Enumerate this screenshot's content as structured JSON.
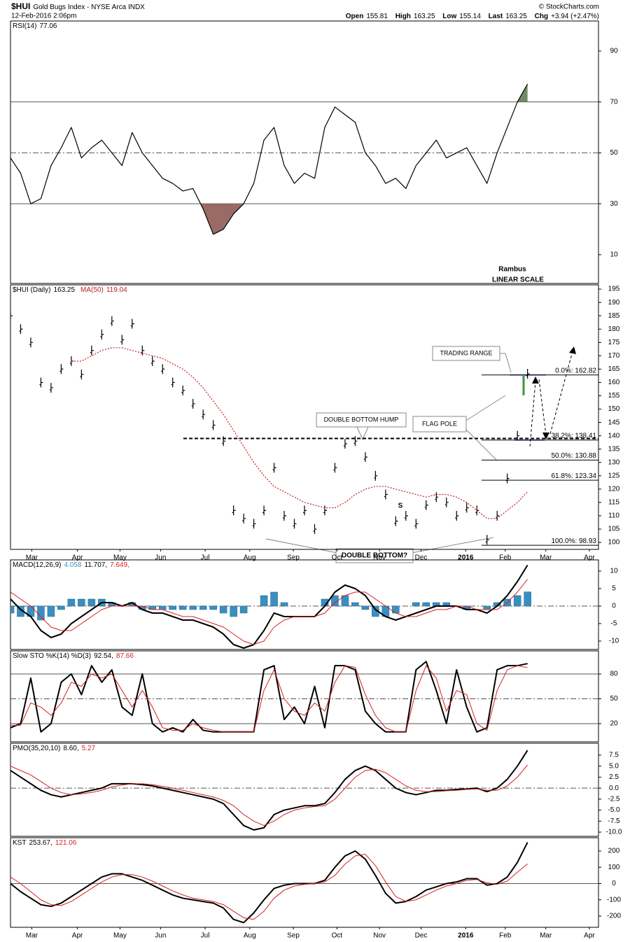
{
  "header": {
    "symbol": "$HUI",
    "name": "Gold Bugs Index - NYSE Arca INDX",
    "date": "12-Feb-2016 2:06pm",
    "credit": "© StockCharts.com",
    "quote": [
      {
        "label": "Open",
        "value": "155.81"
      },
      {
        "label": "High",
        "value": "163.25"
      },
      {
        "label": "Low",
        "value": "155.14"
      },
      {
        "label": "Last",
        "value": "163.25"
      },
      {
        "label": "Chg",
        "value": "+3.94 (+2.47%)"
      }
    ]
  },
  "notes": [
    "Rambus",
    "LINEAR SCALE"
  ],
  "x_axis": {
    "xlim": [
      0,
      58
    ],
    "xticks": [
      {
        "value": 2.1,
        "label": "Mar"
      },
      {
        "value": 6.6,
        "label": "Apr"
      },
      {
        "value": 10.8,
        "label": "May"
      },
      {
        "value": 14.8,
        "label": "Jun"
      },
      {
        "value": 19.2,
        "label": "Jul"
      },
      {
        "value": 23.6,
        "label": "Aug"
      },
      {
        "value": 27.9,
        "label": "Sep"
      },
      {
        "value": 32.2,
        "label": "Oct"
      },
      {
        "value": 36.4,
        "label": "Nov"
      },
      {
        "value": 40.5,
        "label": "Dec"
      },
      {
        "value": 44.9,
        "label": "2016"
      },
      {
        "value": 48.8,
        "label": "Feb"
      },
      {
        "value": 52.8,
        "label": "Mar"
      },
      {
        "value": 57.1,
        "label": "Apr"
      }
    ]
  },
  "chart_data": [
    {
      "type": "line",
      "ylim": [
        -1.3,
        101.8
      ],
      "yticks": [
        10,
        30,
        50,
        70,
        90
      ],
      "ref_lines": [
        {
          "value": 70,
          "style": "solid"
        },
        {
          "value": 50,
          "style": "dashdot"
        },
        {
          "value": 30,
          "style": "solid"
        }
      ],
      "fill_above": {
        "level": 70,
        "color": "#6e8c63"
      },
      "fill_below": {
        "level": 30,
        "color": "#9a6a65"
      },
      "series": [
        {
          "name": "RSI(14)",
          "color": "#000000",
          "value_label": "77.06",
          "values": [
            48,
            42,
            30,
            32,
            45,
            52,
            60,
            48,
            52,
            55,
            50,
            45,
            58,
            50,
            45,
            40,
            38,
            35,
            36,
            28,
            18,
            20,
            26,
            30,
            38,
            55,
            60,
            45,
            38,
            42,
            40,
            60,
            68,
            65,
            62,
            50,
            45,
            38,
            40,
            36,
            45,
            50,
            55,
            48,
            50,
            52,
            45,
            38,
            50,
            60,
            70,
            77.06
          ]
        }
      ]
    },
    {
      "type": "line",
      "ylim": [
        97.4,
        196.6
      ],
      "yticks": [
        100,
        105,
        110,
        115,
        120,
        125,
        130,
        135,
        140,
        145,
        150,
        155,
        160,
        165,
        170,
        175,
        180,
        185,
        190,
        195
      ],
      "ref_lines": [
        {
          "value": 139,
          "style": "neckline"
        }
      ],
      "fib_levels": [
        {
          "value": 162.82,
          "label": "0.0%: 162.82"
        },
        {
          "value": 138.41,
          "label": "38.2%: 138.41"
        },
        {
          "value": 130.88,
          "label": "50.0%: 130.88"
        },
        {
          "value": 123.34,
          "label": "61.8%: 123.34"
        },
        {
          "value": 98.93,
          "label": "100.0%: 98.93"
        }
      ],
      "annotations": [
        "TRADING RANGE",
        "DOUBLE BOTTOM HUMP",
        "FLAG POLE",
        "DOUBLE BOTTOM?",
        "S"
      ],
      "series": [
        {
          "name": "$HUI (Daily)",
          "color": "#000000",
          "style": "bars",
          "value_label": "163.25",
          "values": [
            185,
            180,
            175,
            160,
            158,
            165,
            168,
            163,
            172,
            178,
            183,
            176,
            182,
            172,
            168,
            165,
            160,
            157,
            152,
            148,
            144,
            138,
            112,
            109,
            107,
            112,
            128,
            110,
            107,
            112,
            105,
            112,
            128,
            137,
            138,
            132,
            125,
            118,
            108,
            110,
            107,
            114,
            117,
            115,
            110,
            113,
            112,
            101,
            110,
            124,
            140,
            163.25
          ]
        },
        {
          "name": "MA(50)",
          "color": "#c02020",
          "dash": "2,2",
          "value_label": "119.04",
          "values": [
            null,
            null,
            null,
            null,
            null,
            null,
            168,
            168,
            170,
            172,
            173,
            173,
            172,
            171,
            170,
            169,
            167,
            165,
            162,
            158,
            153,
            148,
            142,
            136,
            130,
            125,
            121,
            119,
            117,
            115,
            114,
            113,
            113,
            115,
            118,
            120,
            121,
            121,
            120,
            119,
            118,
            117,
            118,
            118,
            117,
            115,
            112,
            109,
            109,
            112,
            115,
            119.04
          ]
        }
      ]
    },
    {
      "type": "line",
      "ylim": [
        -12.4,
        13.2
      ],
      "yticks": [
        10,
        5,
        0,
        -5,
        -10
      ],
      "ref_lines": [
        {
          "value": 0,
          "style": "dashdot"
        }
      ],
      "series": [
        {
          "name": "MACD(12,26,9)",
          "color": "#3a8fc0",
          "type": "bar",
          "value_label": "4.058",
          "values": [
            -2,
            -3,
            -3,
            -4,
            -3,
            -1,
            2,
            2,
            2,
            2,
            1,
            0,
            1,
            -1,
            -1,
            -1,
            -1,
            -1,
            -1,
            -1,
            -1,
            -2,
            -3,
            -2,
            0,
            3,
            4,
            1,
            0,
            0,
            0,
            2,
            3,
            3,
            1,
            -1,
            -3,
            -3,
            -2,
            0,
            1,
            1,
            1,
            1,
            0,
            -1,
            0,
            -1,
            1,
            2,
            3,
            4.058
          ]
        },
        {
          "color": "#000000",
          "width": 2,
          "value_label": "11.707,",
          "values": [
            2,
            -1,
            -3,
            -7,
            -9,
            -8,
            -5,
            -3,
            -1,
            1,
            1,
            0,
            1,
            -1,
            -2,
            -2,
            -3,
            -4,
            -4,
            -5,
            -6,
            -8,
            -11,
            -12,
            -11,
            -7,
            -2,
            -3,
            -3,
            -3,
            -3,
            0,
            4,
            6,
            5,
            3,
            -1,
            -3,
            -4,
            -3,
            -2,
            -1,
            0,
            0,
            0,
            -1,
            -1,
            -2,
            0,
            3,
            7,
            11.707
          ]
        },
        {
          "color": "#d62020",
          "width": 1,
          "value_label": "7.649,",
          "values": [
            4,
            2,
            0,
            -3,
            -6,
            -7,
            -7,
            -5,
            -3,
            -1,
            0,
            0,
            0,
            0,
            -1,
            -1,
            -2,
            -3,
            -3,
            -4,
            -5,
            -6,
            -8,
            -10,
            -11,
            -10,
            -6,
            -4,
            -3,
            -3,
            -3,
            -2,
            1,
            3,
            4,
            4,
            2,
            0,
            -2,
            -3,
            -3,
            -2,
            -1,
            -1,
            0,
            0,
            -1,
            -1,
            -1,
            1,
            4,
            7.649
          ]
        }
      ]
    },
    {
      "type": "line",
      "ylim": [
        -2,
        107.9
      ],
      "yticks": [
        80,
        50,
        20
      ],
      "ref_lines": [
        {
          "value": 80,
          "style": "solid"
        },
        {
          "value": 50,
          "style": "dashdot"
        },
        {
          "value": 20,
          "style": "solid"
        }
      ],
      "series": [
        {
          "name": "Slow STO %K(14) %D(3)",
          "color": "#000000",
          "width": 2,
          "value_label": "92.54,",
          "values": [
            15,
            20,
            75,
            10,
            20,
            70,
            80,
            55,
            90,
            70,
            85,
            40,
            30,
            80,
            20,
            10,
            15,
            10,
            25,
            12,
            10,
            10,
            10,
            10,
            10,
            85,
            90,
            25,
            40,
            20,
            65,
            15,
            90,
            90,
            85,
            35,
            20,
            10,
            10,
            10,
            85,
            95,
            60,
            20,
            85,
            40,
            10,
            15,
            85,
            90,
            90,
            92.54
          ]
        },
        {
          "color": "#d62020",
          "width": 1,
          "value_label": "87.66",
          "values": [
            18,
            18,
            45,
            40,
            30,
            45,
            70,
            65,
            80,
            75,
            80,
            60,
            40,
            60,
            40,
            15,
            12,
            12,
            20,
            15,
            12,
            10,
            10,
            10,
            10,
            60,
            85,
            50,
            35,
            30,
            45,
            35,
            70,
            90,
            88,
            55,
            30,
            15,
            10,
            10,
            60,
            90,
            75,
            35,
            60,
            55,
            20,
            12,
            60,
            85,
            90,
            87.66
          ]
        }
      ]
    },
    {
      "type": "line",
      "ylim": [
        -10.95,
        10.2
      ],
      "yticks": [
        7.5,
        {
          "value": 5,
          "label": "5.0"
        },
        2.5,
        {
          "value": 0,
          "label": "0.0"
        },
        -2.5,
        {
          "value": -5,
          "label": "-5.0"
        },
        -7.5,
        {
          "value": -10,
          "label": "-10.0"
        }
      ],
      "ref_lines": [
        {
          "value": 0,
          "style": "dashdot"
        }
      ],
      "series": [
        {
          "name": "PMO(35,20,10)",
          "color": "#000000",
          "width": 2,
          "value_label": "8.60,",
          "values": [
            4,
            2.5,
            1,
            -0.5,
            -1.5,
            -2,
            -1.5,
            -1,
            -0.5,
            0,
            1,
            1,
            1,
            0.8,
            0.5,
            0,
            -0.5,
            -1,
            -1.5,
            -2,
            -2.5,
            -3.5,
            -6,
            -8.5,
            -9.5,
            -9,
            -6,
            -5,
            -4.5,
            -4,
            -4,
            -3.5,
            -1,
            2,
            4,
            5,
            4,
            2,
            0,
            -1,
            -1.5,
            -1,
            -0.5,
            -0.5,
            -0.3,
            -0.2,
            0,
            -0.8,
            0,
            2,
            5,
            8.6
          ]
        },
        {
          "color": "#d62020",
          "width": 1,
          "value_label": "5.27",
          "values": [
            5,
            4,
            3,
            1.5,
            0,
            -1,
            -1.5,
            -1.3,
            -1,
            -0.5,
            0.3,
            0.7,
            1,
            1,
            0.8,
            0.4,
            0,
            -0.5,
            -1,
            -1.5,
            -2,
            -2.8,
            -4,
            -6,
            -7.5,
            -8.5,
            -7.5,
            -6,
            -5,
            -4.5,
            -4.2,
            -4,
            -2.5,
            0,
            2.5,
            4,
            4.3,
            3.5,
            2,
            0.5,
            -0.5,
            -0.8,
            -0.8,
            -0.6,
            -0.5,
            -0.3,
            -0.2,
            -0.5,
            -0.5,
            0.5,
            2.5,
            5.27
          ]
        }
      ]
    },
    {
      "type": "line",
      "ylim": [
        -268.8,
        281.7
      ],
      "yticks": [
        200,
        100,
        0,
        -100,
        -200
      ],
      "ref_lines": [
        {
          "value": 0,
          "style": "solid"
        }
      ],
      "series": [
        {
          "name": "KST",
          "color": "#000000",
          "width": 2,
          "value_label": "253.67,",
          "values": [
            0,
            -50,
            -90,
            -130,
            -140,
            -120,
            -80,
            -40,
            0,
            40,
            60,
            60,
            40,
            20,
            -10,
            -40,
            -70,
            -90,
            -100,
            -110,
            -120,
            -150,
            -220,
            -240,
            -180,
            -100,
            -30,
            -10,
            0,
            0,
            0,
            20,
            100,
            170,
            200,
            150,
            50,
            -60,
            -120,
            -110,
            -80,
            -40,
            -20,
            0,
            10,
            30,
            30,
            -10,
            0,
            40,
            130,
            253.67
          ]
        },
        {
          "color": "#d62020",
          "width": 1,
          "value_label": "121.06",
          "values": [
            40,
            0,
            -50,
            -100,
            -130,
            -135,
            -110,
            -70,
            -30,
            10,
            40,
            55,
            55,
            40,
            15,
            -15,
            -45,
            -70,
            -90,
            -100,
            -110,
            -130,
            -170,
            -210,
            -220,
            -170,
            -90,
            -40,
            -15,
            -5,
            0,
            10,
            50,
            120,
            170,
            180,
            110,
            10,
            -80,
            -110,
            -100,
            -70,
            -40,
            -15,
            0,
            20,
            25,
            5,
            -5,
            15,
            70,
            121.06
          ]
        }
      ]
    }
  ]
}
